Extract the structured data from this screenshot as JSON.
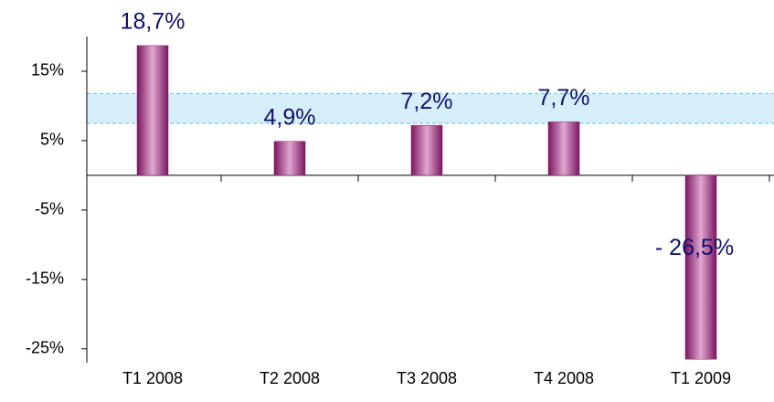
{
  "chart_data": {
    "type": "bar",
    "categories": [
      "T1 2008",
      "T2 2008",
      "T3 2008",
      "T4 2008",
      "T1 2009"
    ],
    "values": [
      18.7,
      4.9,
      7.2,
      7.7,
      -26.5
    ],
    "value_labels": [
      "18,7%",
      "4,9%",
      "7,2%",
      "7,7%",
      "- 26,5%"
    ],
    "color": "#8b1a6b",
    "reference_band": [
      7.5,
      11.8
    ],
    "ylim": [
      -27,
      20
    ],
    "yticks": [
      {
        "value": 15,
        "label": "15%"
      },
      {
        "value": 5,
        "label": "5%"
      },
      {
        "value": -5,
        "label": "-5%"
      },
      {
        "value": -15,
        "label": "-15%"
      },
      {
        "value": -25,
        "label": "-25%"
      }
    ]
  }
}
